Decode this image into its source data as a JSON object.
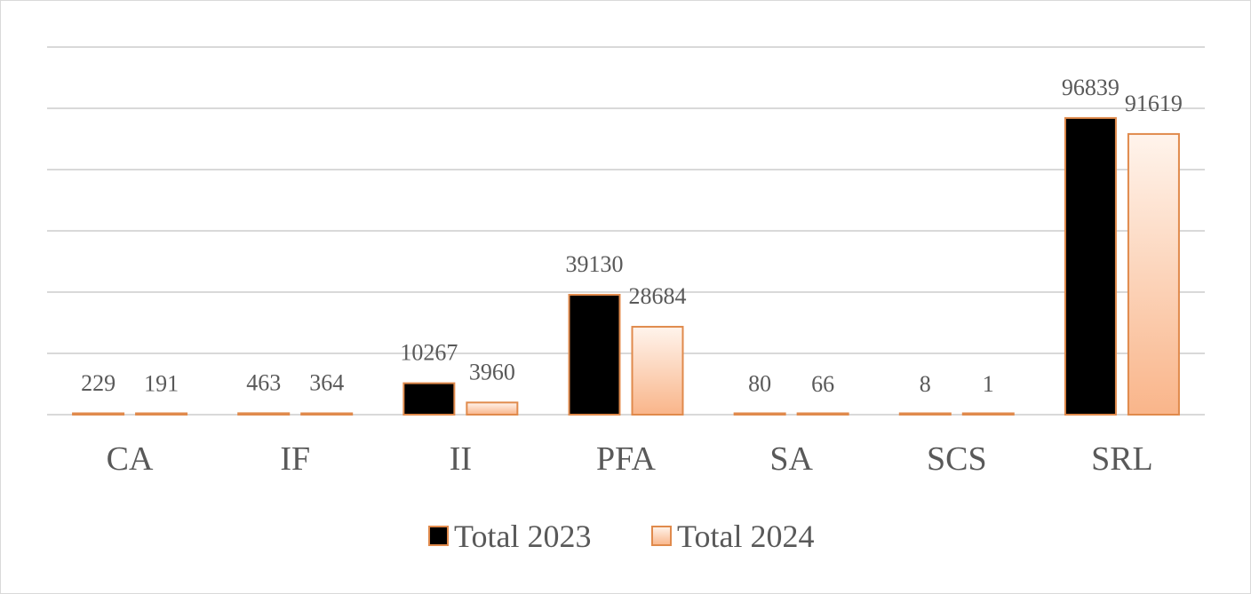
{
  "chart_data": {
    "type": "bar",
    "categories": [
      "CA",
      "IF",
      "II",
      "PFA",
      "SA",
      "SCS",
      "SRL"
    ],
    "series": [
      {
        "name": "Total 2023",
        "values": [
          229,
          463,
          10267,
          39130,
          80,
          8,
          96839
        ]
      },
      {
        "name": "Total 2024",
        "values": [
          191,
          364,
          3960,
          28684,
          66,
          1,
          91619
        ]
      }
    ],
    "ylim": [
      0,
      120000
    ],
    "y_gridline_step": 20000,
    "y_tick_labels_shown": false,
    "grid": true,
    "data_labels": true,
    "legend_position": "bottom",
    "colors": {
      "series_1_fill": "#000000",
      "series_2_fill_top": "#fff4ec",
      "series_2_fill_bottom": "#f9b58a",
      "bar_border": "#e08a4c",
      "gridline": "#d9d9d9",
      "text": "#595959"
    }
  }
}
